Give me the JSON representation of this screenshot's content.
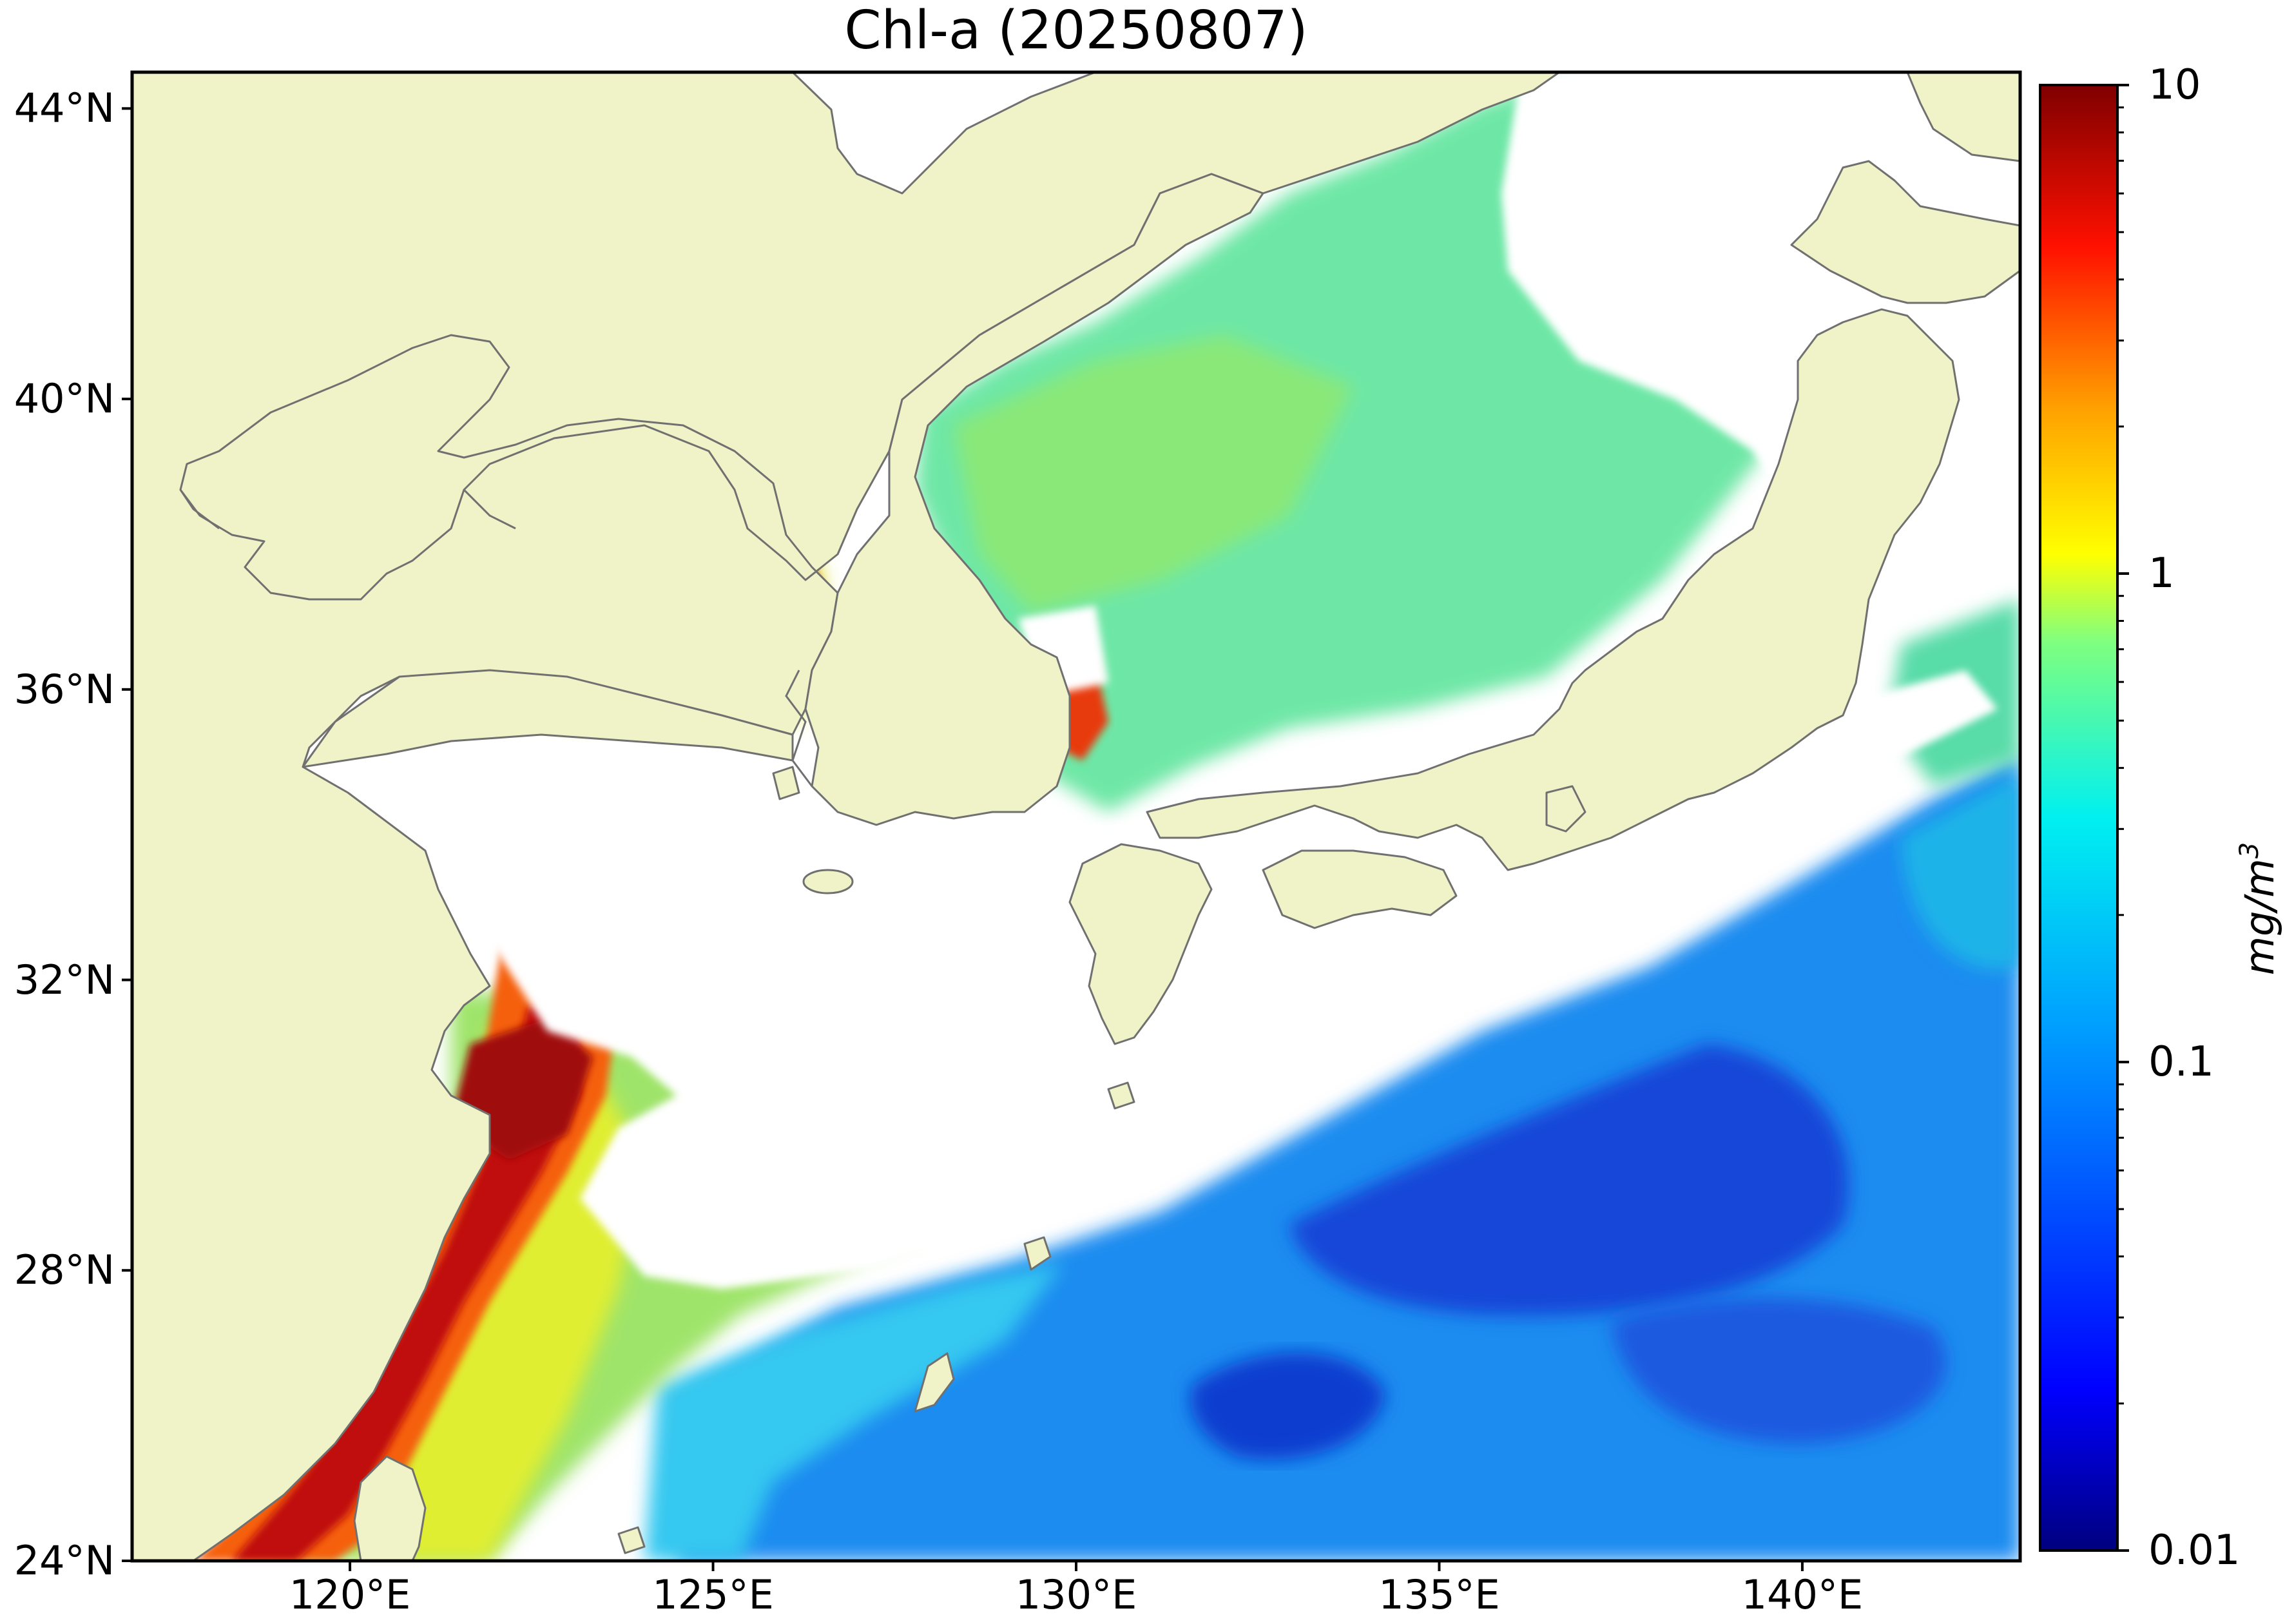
{
  "title": "Chl-a (20250807)",
  "map": {
    "extent": {
      "lon_min": 117,
      "lon_max": 143,
      "lat_min": 24,
      "lat_max": 44.5
    },
    "land_color": "#f0f2c8",
    "coastline_color": "#707070",
    "no_data_color": "#ffffff",
    "lat_ticks": [
      {
        "value": 44,
        "label": "44°N"
      },
      {
        "value": 40,
        "label": "40°N"
      },
      {
        "value": 36,
        "label": "36°N"
      },
      {
        "value": 32,
        "label": "32°N"
      },
      {
        "value": 28,
        "label": "28°N"
      },
      {
        "value": 24,
        "label": "24°N"
      }
    ],
    "lon_ticks": [
      {
        "value": 120,
        "label": "120°E"
      },
      {
        "value": 125,
        "label": "125°E"
      },
      {
        "value": 130,
        "label": "130°E"
      },
      {
        "value": 135,
        "label": "135°E"
      },
      {
        "value": 140,
        "label": "140°E"
      }
    ]
  },
  "colorbar": {
    "colormap": "jet",
    "scale": "log",
    "range": [
      0.01,
      10
    ],
    "unit": "mg/m",
    "unit_sup": "3",
    "ticks": [
      {
        "value": 10,
        "label": "10"
      },
      {
        "value": 1,
        "label": "1"
      },
      {
        "value": 0.1,
        "label": "0.1"
      },
      {
        "value": 0.01,
        "label": "0.01"
      }
    ],
    "colors": [
      "#00007f",
      "#0000ff",
      "#007fff",
      "#00ffff",
      "#7fff7f",
      "#ffff00",
      "#ff7f00",
      "#ff0000",
      "#7f0000"
    ]
  }
}
